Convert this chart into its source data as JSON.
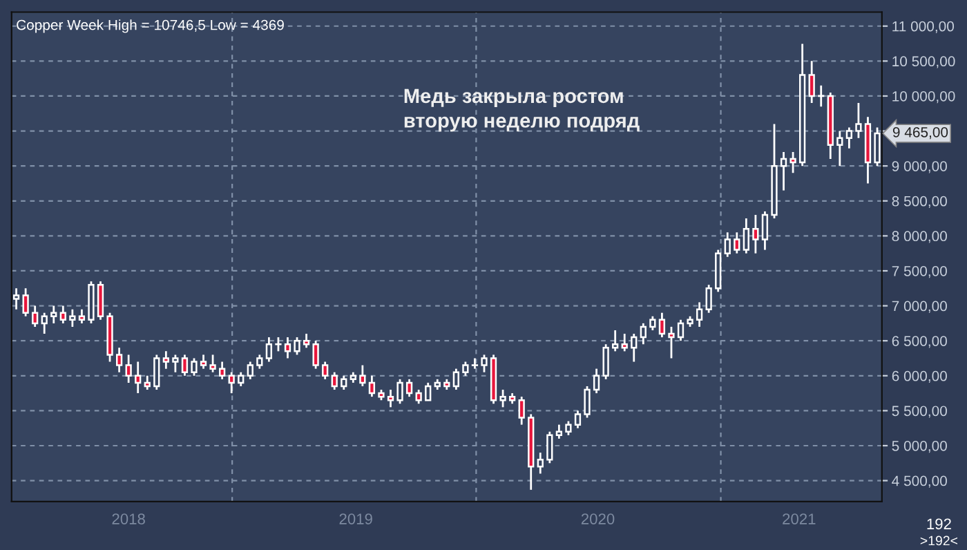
{
  "chart_data": {
    "type": "candlestick",
    "title": "Copper Week High = 10746,5 Low = 4369",
    "annotations": [
      "Медь закрыла ростом\nвторую неделю подряд",
      "192",
      ">192<",
      {
        "text": "9 465,00",
        "x": "2021-08-23",
        "y": 9465
      }
    ],
    "x": [
      "2018-02-12",
      "2018-02-26",
      "2018-03-12",
      "2018-03-26",
      "2018-04-09",
      "2018-04-23",
      "2018-05-07",
      "2018-05-21",
      "2018-06-04",
      "2018-06-18",
      "2018-07-02",
      "2018-07-16",
      "2018-07-30",
      "2018-08-13",
      "2018-08-27",
      "2018-09-10",
      "2018-09-24",
      "2018-10-08",
      "2018-10-22",
      "2018-11-05",
      "2018-11-19",
      "2018-12-03",
      "2018-12-17",
      "2018-12-31",
      "2019-01-14",
      "2019-01-28",
      "2019-02-11",
      "2019-02-25",
      "2019-03-11",
      "2019-03-25",
      "2019-04-08",
      "2019-04-22",
      "2019-05-06",
      "2019-05-20",
      "2019-06-03",
      "2019-06-17",
      "2019-07-01",
      "2019-07-15",
      "2019-07-29",
      "2019-08-12",
      "2019-08-26",
      "2019-09-09",
      "2019-09-23",
      "2019-10-07",
      "2019-10-21",
      "2019-11-04",
      "2019-11-18",
      "2019-12-02",
      "2019-12-16",
      "2019-12-30",
      "2020-01-13",
      "2020-01-27",
      "2020-02-10",
      "2020-02-24",
      "2020-03-09",
      "2020-03-23",
      "2020-04-06",
      "2020-04-20",
      "2020-05-04",
      "2020-05-18",
      "2020-06-01",
      "2020-06-15",
      "2020-06-29",
      "2020-07-13",
      "2020-07-27",
      "2020-08-10",
      "2020-08-24",
      "2020-09-07",
      "2020-09-21",
      "2020-10-05",
      "2020-10-19",
      "2020-11-02",
      "2020-11-16",
      "2020-11-30",
      "2020-12-14",
      "2020-12-28",
      "2021-01-11",
      "2021-01-25",
      "2021-02-08",
      "2021-02-22",
      "2021-03-08",
      "2021-03-22",
      "2021-04-05",
      "2021-04-19",
      "2021-05-03",
      "2021-05-17",
      "2021-05-31",
      "2021-06-14",
      "2021-06-28",
      "2021-07-12",
      "2021-07-26",
      "2021-08-09",
      "2021-08-23"
    ],
    "ohlc": [
      [
        7100,
        7250,
        6950,
        7150
      ],
      [
        7150,
        7250,
        6850,
        6900
      ],
      [
        6900,
        7000,
        6700,
        6750
      ],
      [
        6750,
        6900,
        6600,
        6850
      ],
      [
        6850,
        7000,
        6750,
        6900
      ],
      [
        6900,
        7000,
        6750,
        6800
      ],
      [
        6800,
        6950,
        6700,
        6850
      ],
      [
        6850,
        6950,
        6750,
        6800
      ],
      [
        6800,
        7350,
        6750,
        7300
      ],
      [
        7300,
        7350,
        6800,
        6850
      ],
      [
        6850,
        6900,
        6200,
        6300
      ],
      [
        6300,
        6400,
        6050,
        6150
      ],
      [
        6150,
        6300,
        5900,
        6000
      ],
      [
        6000,
        6200,
        5750,
        5900
      ],
      [
        5900,
        6000,
        5800,
        5850
      ],
      [
        5850,
        6300,
        5800,
        6250
      ],
      [
        6250,
        6350,
        6100,
        6200
      ],
      [
        6200,
        6300,
        6050,
        6250
      ],
      [
        6250,
        6300,
        6000,
        6050
      ],
      [
        6050,
        6250,
        6000,
        6200
      ],
      [
        6200,
        6300,
        6100,
        6150
      ],
      [
        6150,
        6300,
        6050,
        6100
      ],
      [
        6100,
        6200,
        5950,
        6000
      ],
      [
        6000,
        6050,
        5750,
        5900
      ],
      [
        5900,
        6050,
        5850,
        6000
      ],
      [
        6000,
        6200,
        5950,
        6150
      ],
      [
        6150,
        6300,
        6100,
        6250
      ],
      [
        6250,
        6550,
        6200,
        6450
      ],
      [
        6450,
        6550,
        6350,
        6450
      ],
      [
        6450,
        6550,
        6250,
        6350
      ],
      [
        6350,
        6550,
        6300,
        6500
      ],
      [
        6500,
        6600,
        6400,
        6450
      ],
      [
        6450,
        6500,
        6100,
        6150
      ],
      [
        6150,
        6200,
        5950,
        6000
      ],
      [
        6000,
        6050,
        5800,
        5850
      ],
      [
        5850,
        6000,
        5800,
        5950
      ],
      [
        5950,
        6050,
        5900,
        6000
      ],
      [
        6000,
        6150,
        5850,
        5900
      ],
      [
        5900,
        6000,
        5700,
        5750
      ],
      [
        5750,
        5800,
        5650,
        5700
      ],
      [
        5700,
        5800,
        5550,
        5650
      ],
      [
        5650,
        5950,
        5600,
        5900
      ],
      [
        5900,
        5950,
        5700,
        5750
      ],
      [
        5750,
        5800,
        5600,
        5650
      ],
      [
        5650,
        5900,
        5650,
        5850
      ],
      [
        5850,
        5950,
        5800,
        5900
      ],
      [
        5900,
        5950,
        5800,
        5850
      ],
      [
        5850,
        6100,
        5800,
        6050
      ],
      [
        6050,
        6200,
        6000,
        6150
      ],
      [
        6150,
        6250,
        6100,
        6150
      ],
      [
        6150,
        6300,
        6050,
        6250
      ],
      [
        6250,
        6300,
        5600,
        5650
      ],
      [
        5650,
        5800,
        5550,
        5700
      ],
      [
        5700,
        5750,
        5600,
        5650
      ],
      [
        5650,
        5700,
        5300,
        5400
      ],
      [
        5400,
        5450,
        4369,
        4700
      ],
      [
        4700,
        4900,
        4600,
        4800
      ],
      [
        4800,
        5200,
        4750,
        5150
      ],
      [
        5150,
        5300,
        5100,
        5200
      ],
      [
        5200,
        5350,
        5150,
        5300
      ],
      [
        5300,
        5500,
        5250,
        5450
      ],
      [
        5450,
        5850,
        5400,
        5800
      ],
      [
        5800,
        6100,
        5750,
        6000
      ],
      [
        6000,
        6450,
        5950,
        6400
      ],
      [
        6400,
        6650,
        6350,
        6450
      ],
      [
        6450,
        6600,
        6350,
        6400
      ],
      [
        6400,
        6600,
        6200,
        6550
      ],
      [
        6550,
        6750,
        6450,
        6700
      ],
      [
        6700,
        6850,
        6650,
        6800
      ],
      [
        6800,
        6900,
        6550,
        6600
      ],
      [
        6600,
        6700,
        6250,
        6550
      ],
      [
        6550,
        6800,
        6500,
        6750
      ],
      [
        6750,
        6850,
        6700,
        6800
      ],
      [
        6800,
        7050,
        6700,
        6950
      ],
      [
        6950,
        7300,
        6900,
        7250
      ],
      [
        7250,
        7800,
        7200,
        7750
      ],
      [
        7750,
        8050,
        7700,
        7950
      ],
      [
        7950,
        8050,
        7750,
        7800
      ],
      [
        7800,
        8250,
        7750,
        8100
      ],
      [
        8100,
        8300,
        7750,
        7950
      ],
      [
        7950,
        8350,
        7800,
        8300
      ],
      [
        8300,
        9600,
        8250,
        9000
      ],
      [
        9000,
        9200,
        8650,
        9100
      ],
      [
        9100,
        9200,
        8900,
        9050
      ],
      [
        9050,
        10746.5,
        9000,
        10300
      ],
      [
        10300,
        10500,
        9900,
        10000
      ],
      [
        10000,
        10150,
        9850,
        10000
      ],
      [
        10000,
        10050,
        9100,
        9300
      ],
      [
        9300,
        9500,
        9000,
        9400
      ],
      [
        9400,
        9550,
        9250,
        9500
      ],
      [
        9500,
        9900,
        9400,
        9600
      ],
      [
        9600,
        9700,
        8750,
        9050
      ],
      [
        9050,
        9550,
        9000,
        9465
      ]
    ],
    "color": "#ffffff",
    "colors": [
      "#36445f",
      "#e8163c",
      "#e8163c",
      "#36445f",
      "#36445f",
      "#e8163c",
      "#36445f",
      "#e8163c",
      "#36445f",
      "#e8163c",
      "#e8163c",
      "#e8163c",
      "#e8163c",
      "#e8163c",
      "#e8163c",
      "#36445f",
      "#e8163c",
      "#36445f",
      "#e8163c",
      "#36445f",
      "#e8163c",
      "#e8163c",
      "#e8163c",
      "#e8163c",
      "#36445f",
      "#36445f",
      "#36445f",
      "#36445f",
      "#36445f",
      "#e8163c",
      "#36445f",
      "#e8163c",
      "#e8163c",
      "#e8163c",
      "#e8163c",
      "#36445f",
      "#36445f",
      "#e8163c",
      "#e8163c",
      "#e8163c",
      "#e8163c",
      "#36445f",
      "#e8163c",
      "#e8163c",
      "#36445f",
      "#36445f",
      "#e8163c",
      "#36445f",
      "#36445f",
      "#36445f",
      "#36445f",
      "#e8163c",
      "#36445f",
      "#e8163c",
      "#e8163c",
      "#e8163c",
      "#36445f",
      "#36445f",
      "#36445f",
      "#36445f",
      "#36445f",
      "#36445f",
      "#36445f",
      "#36445f",
      "#36445f",
      "#e8163c",
      "#36445f",
      "#36445f",
      "#36445f",
      "#e8163c",
      "#e8163c",
      "#36445f",
      "#36445f",
      "#36445f",
      "#36445f",
      "#36445f",
      "#36445f",
      "#e8163c",
      "#36445f",
      "#e8163c",
      "#36445f",
      "#36445f",
      "#36445f",
      "#e8163c",
      "#36445f",
      "#e8163c",
      "#36445f",
      "#e8163c",
      "#36445f",
      "#36445f",
      "#36445f",
      "#e8163c",
      "#36445f"
    ],
    "xlim": [
      "2018-02-05",
      "2021-08-30"
    ],
    "xticks": [
      {
        "value": "2018-07-30",
        "label": "2018"
      },
      {
        "value": "2019-01-01",
        "label": null
      },
      {
        "value": "2019-07-05",
        "label": "2019"
      },
      {
        "value": "2020-01-01",
        "label": null
      },
      {
        "value": "2020-07-01",
        "label": "2020"
      },
      {
        "value": "2021-01-01",
        "label": null
      },
      {
        "value": "2021-04-28",
        "label": "2021"
      }
    ],
    "ylim": [
      4200,
      11200
    ],
    "yticks": [
      {
        "value": 4500,
        "label": "4 500,00"
      },
      {
        "value": 5000,
        "label": "5 000,00"
      },
      {
        "value": 5500,
        "label": "5 500,00"
      },
      {
        "value": 6000,
        "label": "6 000,00"
      },
      {
        "value": 6500,
        "label": "6 500,00"
      },
      {
        "value": 7000,
        "label": "7 000,00"
      },
      {
        "value": 7500,
        "label": "7 500,00"
      },
      {
        "value": 8000,
        "label": "8 000,00"
      },
      {
        "value": 8500,
        "label": "8 500,00"
      },
      {
        "value": 9000,
        "label": "9 000,00"
      },
      {
        "value": 9500,
        "label": null
      },
      {
        "value": 10000,
        "label": "10 000,00"
      },
      {
        "value": 10500,
        "label": "10 500,00"
      },
      {
        "value": 11000,
        "label": "11 000,00"
      }
    ],
    "grid": true
  }
}
